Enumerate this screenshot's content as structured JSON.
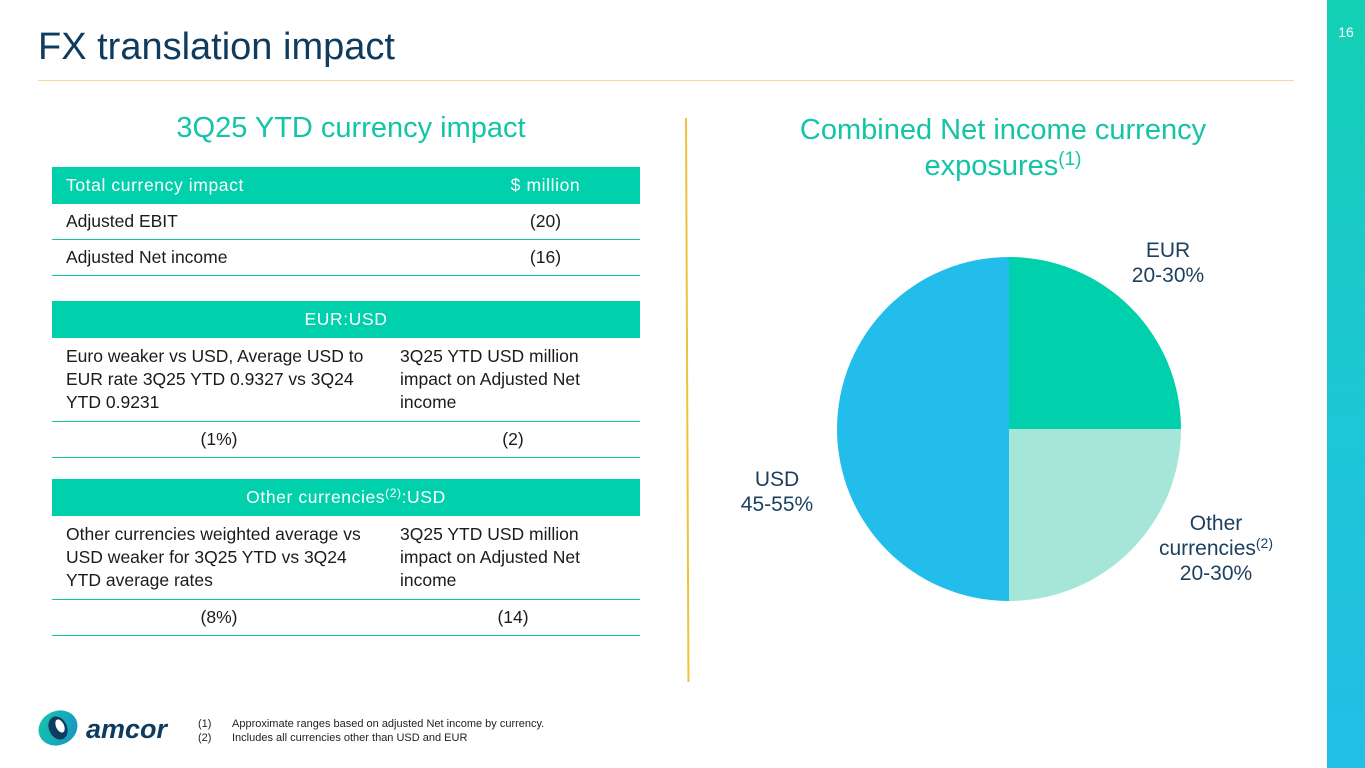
{
  "page": {
    "title": "FX translation impact",
    "page_number": "16"
  },
  "left": {
    "heading": "3Q25 YTD currency impact",
    "table1": {
      "headers": [
        "Total currency impact",
        "$ million"
      ],
      "rows": [
        [
          "Adjusted EBIT",
          "(20)"
        ],
        [
          "Adjusted Net income",
          "(16)"
        ]
      ]
    },
    "table2": {
      "header": "EUR:USD",
      "desc": [
        "Euro weaker vs USD, Average USD to EUR rate 3Q25 YTD 0.9327 vs 3Q24 YTD 0.9231",
        "3Q25 YTD USD million impact on Adjusted Net income"
      ],
      "values": [
        "(1%)",
        "(2)"
      ]
    },
    "table3": {
      "header_main": "Other currencies",
      "header_sup": "(2)",
      "header_tail": ":USD",
      "desc": [
        "Other currencies weighted average vs USD weaker for 3Q25 YTD vs 3Q24 YTD average rates",
        "3Q25 YTD USD million impact on Adjusted Net income"
      ],
      "values": [
        "(8%)",
        "(14)"
      ]
    }
  },
  "right": {
    "heading_main": "Combined Net income currency exposures",
    "heading_sup": "(1)"
  },
  "chart_data": {
    "type": "pie",
    "slices": [
      {
        "label": "EUR",
        "range": "20-30%",
        "value": 25,
        "color": "#00d0ab"
      },
      {
        "label": "Other currencies",
        "label_sup": "(2)",
        "range": "20-30%",
        "value": 25,
        "color": "#a6e6d8"
      },
      {
        "label": "USD",
        "range": "45-55%",
        "value": 50,
        "color": "#22bdea"
      }
    ]
  },
  "footnotes": [
    {
      "num": "(1)",
      "text": "Approximate ranges based on adjusted Net income by currency."
    },
    {
      "num": "(2)",
      "text": "Includes all currencies other than USD and EUR"
    }
  ],
  "brand": {
    "name": "amcor"
  },
  "colors": {
    "accent": "#00d0ab",
    "title": "#0e3b5e",
    "divider": "#f0c23a"
  }
}
